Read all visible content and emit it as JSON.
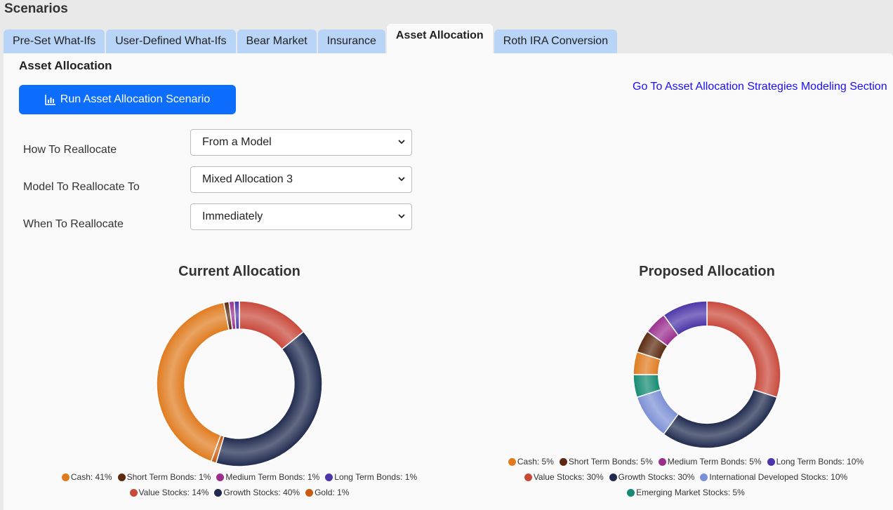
{
  "page": {
    "title": "Scenarios"
  },
  "tabs": [
    {
      "label": "Pre-Set What-Ifs",
      "active": false
    },
    {
      "label": "User-Defined What-Ifs",
      "active": false
    },
    {
      "label": "Bear Market",
      "active": false
    },
    {
      "label": "Insurance",
      "active": false
    },
    {
      "label": "Asset Allocation",
      "active": true
    },
    {
      "label": "Roth IRA Conversion",
      "active": false
    }
  ],
  "section": {
    "title": "Asset Allocation",
    "run_button": "Run Asset Allocation Scenario",
    "run_icon": "bar-chart-icon",
    "goto_link": "Go To Asset Allocation Strategies Modeling Section"
  },
  "form": {
    "how": {
      "label": "How To Reallocate",
      "value": "From a Model"
    },
    "model": {
      "label": "Model To Reallocate To",
      "value": "Mixed Allocation 3"
    },
    "when": {
      "label": "When To Reallocate",
      "value": "Immediately"
    }
  },
  "chart_data": [
    {
      "type": "pie",
      "title": "Current Allocation",
      "categories": [
        "Cash",
        "Short Term Bonds",
        "Medium Term Bonds",
        "Long Term Bonds",
        "Value Stocks",
        "Growth Stocks",
        "Gold"
      ],
      "values": [
        41,
        1,
        1,
        1,
        14,
        40,
        1
      ],
      "legend": [
        "Cash: 41%",
        "Short Term Bonds: 1%",
        "Medium Term Bonds: 1%",
        "Long Term Bonds: 1%",
        "Value Stocks: 14%",
        "Growth Stocks: 40%",
        "Gold: 1%"
      ],
      "legend_placement": "bottom"
    },
    {
      "type": "pie",
      "title": "Proposed Allocation",
      "categories": [
        "Cash",
        "Short Term Bonds",
        "Medium Term Bonds",
        "Long Term Bonds",
        "Value Stocks",
        "Growth Stocks",
        "International Developed Stocks",
        "Emerging Market Stocks"
      ],
      "values": [
        5,
        5,
        5,
        10,
        30,
        30,
        10,
        5
      ],
      "legend": [
        "Cash: 5%",
        "Short Term Bonds: 5%",
        "Medium Term Bonds: 5%",
        "Long Term Bonds: 10%",
        "Value Stocks: 30%",
        "Growth Stocks: 30%",
        "International Developed Stocks: 10%",
        "Emerging Market Stocks: 5%"
      ],
      "legend_placement": "bottom"
    }
  ],
  "colors": {
    "Cash": "#e07b1f",
    "Short Term Bonds": "#5b2a10",
    "Medium Term Bonds": "#9b2f8f",
    "Long Term Bonds": "#4b35a8",
    "Value Stocks": "#c8483a",
    "Growth Stocks": "#1f2a4e",
    "Gold": "#c85a12",
    "International Developed Stocks": "#7b8fd6",
    "Emerging Market Stocks": "#138a72",
    "accent": "#0d6efd",
    "tab": "#b8d4f7"
  }
}
